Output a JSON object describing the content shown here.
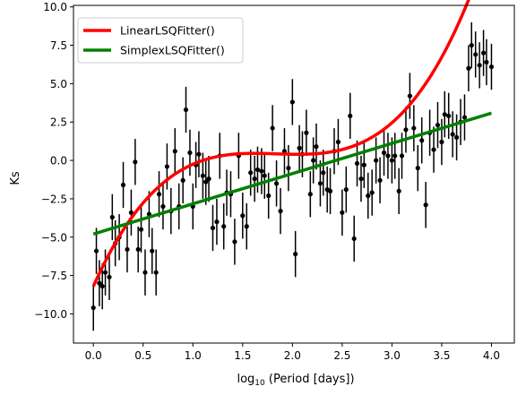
{
  "chart_data": {
    "type": "scatter",
    "title": "",
    "xlabel_prefix": "log",
    "xlabel_sub": "10",
    "xlabel_rest": " (Period [days])",
    "ylabel": "Ks",
    "xlim": [
      -0.2,
      4.23
    ],
    "ylim": [
      -11.9,
      10.1
    ],
    "xticks": [
      0.0,
      0.5,
      1.0,
      1.5,
      2.0,
      2.5,
      3.0,
      3.5,
      4.0
    ],
    "xtick_labels": [
      "0.0",
      "0.5",
      "1.0",
      "1.5",
      "2.0",
      "2.5",
      "3.0",
      "3.5",
      "4.0"
    ],
    "yticks": [
      -10.0,
      -7.5,
      -5.0,
      -2.5,
      0.0,
      2.5,
      5.0,
      7.5,
      10.0
    ],
    "ytick_labels": [
      "−10.0",
      "−7.5",
      "−5.0",
      "−2.5",
      "0.0",
      "2.5",
      "5.0",
      "7.5",
      "10.0"
    ],
    "grid": false,
    "legend_position": "top-left",
    "error_bar": 1.5,
    "points_x": [
      0.0,
      0.03,
      0.06,
      0.09,
      0.12,
      0.16,
      0.19,
      0.22,
      0.26,
      0.3,
      0.34,
      0.38,
      0.42,
      0.45,
      0.48,
      0.52,
      0.56,
      0.59,
      0.63,
      0.66,
      0.7,
      0.74,
      0.78,
      0.82,
      0.86,
      0.9,
      0.93,
      0.97,
      1.0,
      1.03,
      1.06,
      1.1,
      1.13,
      1.16,
      1.2,
      1.24,
      1.27,
      1.31,
      1.34,
      1.38,
      1.42,
      1.46,
      1.5,
      1.54,
      1.58,
      1.62,
      1.65,
      1.69,
      1.72,
      1.76,
      1.8,
      1.84,
      1.88,
      1.92,
      1.96,
      2.0,
      2.03,
      2.07,
      2.1,
      2.14,
      2.18,
      2.21,
      2.24,
      2.28,
      2.31,
      2.35,
      2.38,
      2.42,
      2.46,
      2.5,
      2.54,
      2.58,
      2.62,
      2.65,
      2.69,
      2.72,
      2.76,
      2.8,
      2.84,
      2.88,
      2.92,
      2.96,
      3.0,
      3.03,
      3.07,
      3.1,
      3.14,
      3.18,
      3.22,
      3.26,
      3.3,
      3.34,
      3.38,
      3.42,
      3.46,
      3.5,
      3.53,
      3.57,
      3.61,
      3.65,
      3.69,
      3.73,
      3.77,
      3.8,
      3.84,
      3.88,
      3.92,
      3.95,
      4.0
    ],
    "points_y": [
      -9.6,
      -5.9,
      -8.0,
      -8.2,
      -7.3,
      -7.6,
      -3.7,
      -5.4,
      -5.0,
      -1.6,
      -5.8,
      -3.4,
      -0.1,
      -5.8,
      -4.5,
      -7.3,
      -3.5,
      -5.9,
      -7.3,
      -2.2,
      -3.0,
      -0.4,
      -3.3,
      0.6,
      -3.0,
      -1.3,
      3.3,
      0.5,
      -3.0,
      -0.3,
      0.4,
      -1.0,
      -1.4,
      -1.2,
      -4.4,
      -4.0,
      0.3,
      -4.3,
      -2.1,
      -2.2,
      -5.3,
      0.3,
      -3.6,
      -4.3,
      -0.8,
      -1.2,
      -0.6,
      -0.7,
      -1.0,
      -2.3,
      2.1,
      -1.5,
      -3.3,
      0.6,
      -0.5,
      3.8,
      -6.1,
      0.8,
      0.4,
      1.8,
      -2.2,
      0.0,
      0.9,
      -1.5,
      -0.8,
      -1.9,
      -2.0,
      0.6,
      1.2,
      -3.4,
      -1.9,
      2.9,
      -5.1,
      -0.2,
      -1.2,
      -0.3,
      -2.3,
      -2.1,
      0.0,
      -1.3,
      0.5,
      0.3,
      0.0,
      0.3,
      -2.0,
      0.3,
      2.0,
      4.2,
      2.1,
      -0.5,
      1.3,
      -2.9,
      1.8,
      0.7,
      2.3,
      1.2,
      3.0,
      2.9,
      1.7,
      1.5,
      2.5,
      2.8,
      6.0,
      7.5,
      6.9,
      6.2,
      7.0,
      6.4,
      6.1
    ],
    "series": [
      {
        "name": "LinearLSQFitter()",
        "color": "#ff0000",
        "kind": "cubic",
        "coefficients": [
          -8.2,
          14.5,
          -8.0,
          1.45
        ]
      },
      {
        "name": "SimplexLSQFitter()",
        "color": "#008000",
        "kind": "linear",
        "coefficients": [
          -4.8,
          1.97
        ]
      }
    ],
    "marker_color": "#000000"
  }
}
